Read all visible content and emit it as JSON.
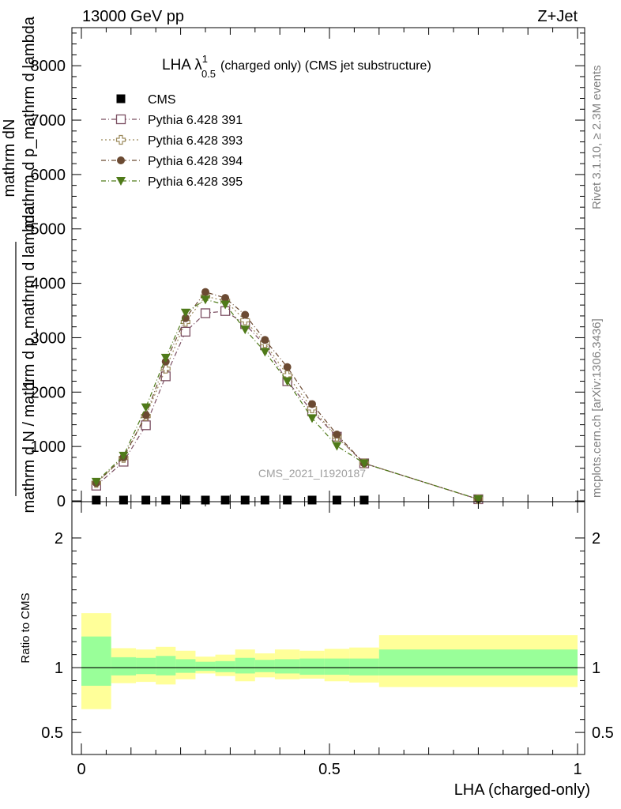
{
  "header": {
    "energy_label": "13000 GeV pp",
    "process_label": "Z+Jet"
  },
  "side_labels": {
    "rivet": "Rivet 3.1.10, ≥ 2.3M events",
    "mcplots": "mcplots.cern.ch [arXiv:1306.3436]"
  },
  "watermark": "CMS_2021_I1920187",
  "chart_data": [
    {
      "type": "line",
      "title_main": "LHA λ",
      "title_sup": "1",
      "title_sub": "0.5",
      "title_rest": "(charged only) (CMS jet substructure)",
      "ylabel_top": "mathrm dN",
      "ylabel_top2": "mathrm d p_mathrm d lambda",
      "ylabel_one": "1",
      "ylabel_bottom": "mathrm d N / mathrm d p_mathrm d lambda",
      "xlim": [
        0,
        1
      ],
      "ylim": [
        0,
        8700
      ],
      "yticks": [
        0,
        1000,
        2000,
        3000,
        4000,
        5000,
        6000,
        7000,
        8000
      ],
      "ytick_labels": [
        "0",
        "1000",
        "2000",
        "3000",
        "4000",
        "5000",
        "6000",
        "7000",
        "8000"
      ],
      "x": [
        0.03,
        0.085,
        0.13,
        0.17,
        0.21,
        0.25,
        0.29,
        0.33,
        0.37,
        0.415,
        0.465,
        0.515,
        0.57,
        0.8
      ],
      "series": [
        {
          "name": "CMS",
          "color": "#000000",
          "marker": "square-filled",
          "values": [
            15,
            15,
            15,
            15,
            15,
            15,
            15,
            15,
            15,
            15,
            15,
            15,
            15,
            null
          ]
        },
        {
          "name": "Pythia 6.428 391",
          "color": "#7b4f62",
          "marker": "square-open",
          "dash": "dashdot",
          "values": [
            280,
            720,
            1390,
            2290,
            3110,
            3450,
            3490,
            3250,
            2860,
            2200,
            1650,
            1180,
            690,
            30
          ]
        },
        {
          "name": "Pythia 6.428 393",
          "color": "#9c8a5c",
          "marker": "cross-open",
          "dash": "dotted",
          "values": [
            330,
            790,
            1560,
            2430,
            3290,
            3760,
            3680,
            3320,
            2900,
            2310,
            1700,
            1180,
            690,
            30
          ]
        },
        {
          "name": "Pythia 6.428 394",
          "color": "#6b4a32",
          "marker": "circle-filled",
          "dash": "dashdot",
          "values": [
            330,
            800,
            1580,
            2560,
            3360,
            3840,
            3730,
            3420,
            2960,
            2460,
            1780,
            1220,
            690,
            30
          ]
        },
        {
          "name": "Pythia 6.428 395",
          "color": "#4f7a19",
          "marker": "triangle-down-filled",
          "dash": "dashdot",
          "values": [
            350,
            830,
            1720,
            2630,
            3460,
            3700,
            3610,
            3150,
            2740,
            2200,
            1520,
            1010,
            690,
            30
          ]
        }
      ]
    },
    {
      "type": "area",
      "ylabel": "Ratio to CMS",
      "xlabel": "LHA (charged-only)",
      "xlim": [
        0,
        1
      ],
      "ylim": [
        0.33,
        2.28
      ],
      "yticks": [
        0.5,
        1,
        2
      ],
      "ytick_labels": [
        "0.5",
        "1",
        "2"
      ],
      "xticks": [
        0,
        0.5,
        1
      ],
      "xtick_labels": [
        "0",
        "0.5",
        "1"
      ],
      "bins": [
        0,
        0.06,
        0.11,
        0.15,
        0.19,
        0.23,
        0.27,
        0.31,
        0.35,
        0.39,
        0.44,
        0.49,
        0.54,
        0.6,
        1.0
      ],
      "band_inner": {
        "color": "#99ff99",
        "lower": [
          0.86,
          0.94,
          0.95,
          0.94,
          0.96,
          0.975,
          0.965,
          0.955,
          0.965,
          0.955,
          0.945,
          0.945,
          0.94,
          0.94
        ],
        "upper": [
          1.24,
          1.08,
          1.075,
          1.09,
          1.065,
          1.045,
          1.05,
          1.075,
          1.06,
          1.065,
          1.07,
          1.07,
          1.07,
          1.14
        ]
      },
      "band_outer": {
        "color": "#ffff99",
        "lower": [
          0.68,
          0.88,
          0.89,
          0.87,
          0.91,
          0.955,
          0.935,
          0.895,
          0.925,
          0.91,
          0.915,
          0.895,
          0.885,
          0.85
        ],
        "upper": [
          1.42,
          1.15,
          1.14,
          1.16,
          1.13,
          1.085,
          1.1,
          1.14,
          1.11,
          1.14,
          1.13,
          1.145,
          1.155,
          1.25
        ]
      },
      "reference": 1
    }
  ]
}
